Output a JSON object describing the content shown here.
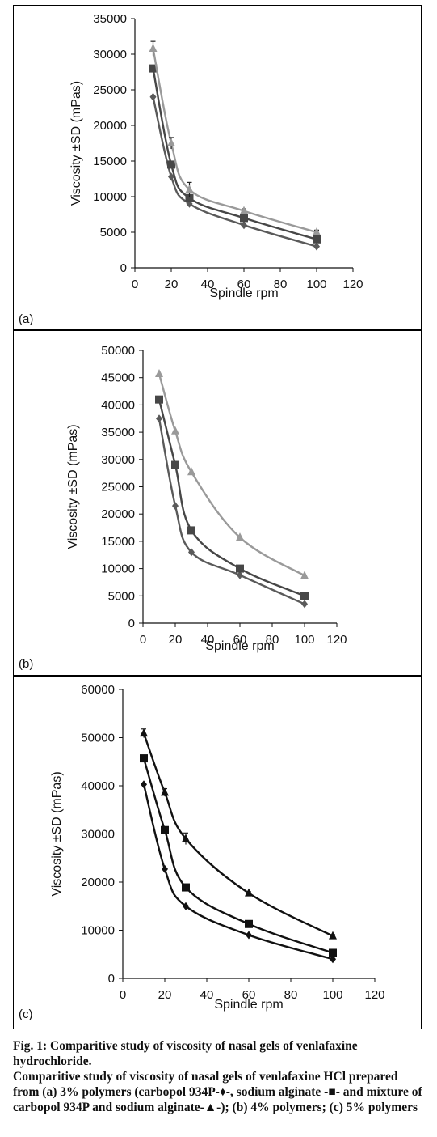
{
  "chart_data": [
    {
      "type": "line",
      "panel_label": "(a)",
      "xlabel": "Spindle rpm",
      "ylabel": "Viscosity ±SD (mPas)",
      "xlim": [
        0,
        120
      ],
      "ylim": [
        0,
        35000
      ],
      "xticks": [
        "0",
        "20",
        "40",
        "60",
        "80",
        "100",
        "120"
      ],
      "yticks": [
        "0",
        "5000",
        "10000",
        "15000",
        "20000",
        "25000",
        "30000",
        "35000"
      ],
      "x": [
        10,
        20,
        30,
        60,
        100
      ],
      "series": [
        {
          "marker": "diamond",
          "color": "#5a5a5a",
          "values": [
            24000,
            12800,
            9000,
            6000,
            3000
          ]
        },
        {
          "marker": "square",
          "color": "#474747",
          "values": [
            28000,
            14500,
            9800,
            7000,
            4000
          ]
        },
        {
          "marker": "triangle",
          "color": "#9a9a9a",
          "values": [
            30800,
            17500,
            11000,
            8000,
            5000
          ],
          "error": [
            1000,
            800,
            1000,
            300,
            300
          ]
        }
      ]
    },
    {
      "type": "line",
      "panel_label": "(b)",
      "xlabel": "Spindle rpm",
      "ylabel": "Viscosity ±SD (mPas)",
      "xlim": [
        0,
        120
      ],
      "ylim": [
        0,
        50000
      ],
      "xticks": [
        "0",
        "20",
        "40",
        "60",
        "80",
        "100",
        "120"
      ],
      "yticks": [
        "0",
        "5000",
        "10000",
        "15000",
        "20000",
        "25000",
        "30000",
        "35000",
        "40000",
        "45000",
        "50000"
      ],
      "x": [
        10,
        20,
        30,
        60,
        100
      ],
      "series": [
        {
          "marker": "diamond",
          "color": "#5a5a5a",
          "values": [
            37500,
            21500,
            13000,
            8800,
            3500
          ]
        },
        {
          "marker": "square",
          "color": "#474747",
          "values": [
            41000,
            29000,
            17000,
            10000,
            5000
          ]
        },
        {
          "marker": "triangle",
          "color": "#9a9a9a",
          "values": [
            45700,
            35200,
            27700,
            15700,
            8700
          ]
        }
      ]
    },
    {
      "type": "line",
      "panel_label": "(c)",
      "xlabel": "Spindle rpm",
      "ylabel": "Viscosity ±SD (mPas)",
      "xlim": [
        0,
        120
      ],
      "ylim": [
        0,
        60000
      ],
      "xticks": [
        "0",
        "20",
        "40",
        "60",
        "80",
        "100",
        "120"
      ],
      "yticks": [
        "0",
        "10000",
        "20000",
        "30000",
        "40000",
        "50000",
        "60000"
      ],
      "x": [
        10,
        20,
        30,
        60,
        100
      ],
      "series": [
        {
          "marker": "diamond",
          "color": "#111111",
          "values": [
            40300,
            22700,
            15000,
            9000,
            4000
          ]
        },
        {
          "marker": "square",
          "color": "#111111",
          "values": [
            45700,
            30800,
            18900,
            11300,
            5300
          ]
        },
        {
          "marker": "triangle",
          "color": "#111111",
          "values": [
            50900,
            38600,
            29000,
            17700,
            8800
          ],
          "error": [
            900,
            800,
            1200,
            300,
            300
          ]
        }
      ]
    }
  ],
  "caption": {
    "line1": "Fig. 1: Comparitive study of viscosity of nasal gels of venlafaxine hydrochloride.",
    "line2": "Comparitive study of viscosity of nasal gels of venlafaxine HCl prepared from (a) 3% polymers (carbopol 934P-♦-, sodium alginate -■- and mixture of carbopol 934P and sodium alginate-▲-); (b) 4% polymers; (c) 5% polymers"
  }
}
